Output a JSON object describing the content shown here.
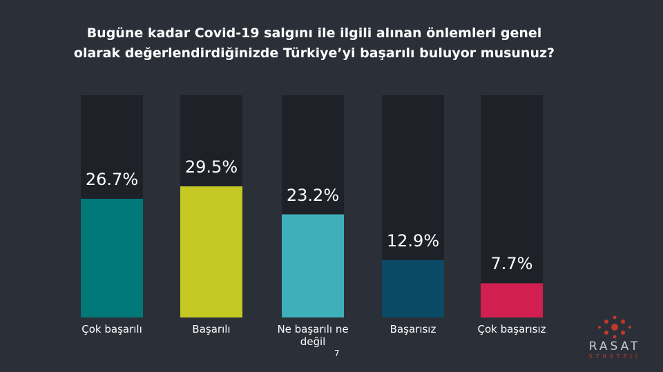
{
  "chart_data": {
    "type": "bar",
    "title": "Bugüne kadar Covid-19 salgını ile ilgili alınan önlemleri genel olarak değerlendirdiğinizde Türkiye’yi başarılı buluyor musunuz?",
    "categories": [
      "Çok başarılı",
      "Başarılı",
      "Ne başarılı ne değil",
      "Başarısız",
      "Çok başarısız"
    ],
    "values": [
      26.7,
      29.5,
      23.2,
      12.9,
      7.7
    ],
    "value_labels": [
      "26.7%",
      "29.5%",
      "23.2%",
      "12.9%",
      "7.7%"
    ],
    "colors": [
      "#00787a",
      "#c5c923",
      "#3fb0ba",
      "#0b4a66",
      "#d11f4f"
    ],
    "track_color": "#1f2129",
    "ylim": [
      0,
      50
    ]
  },
  "page_number": "7",
  "logo": {
    "name": "RASAT",
    "tagline": "STRATEJİ"
  }
}
